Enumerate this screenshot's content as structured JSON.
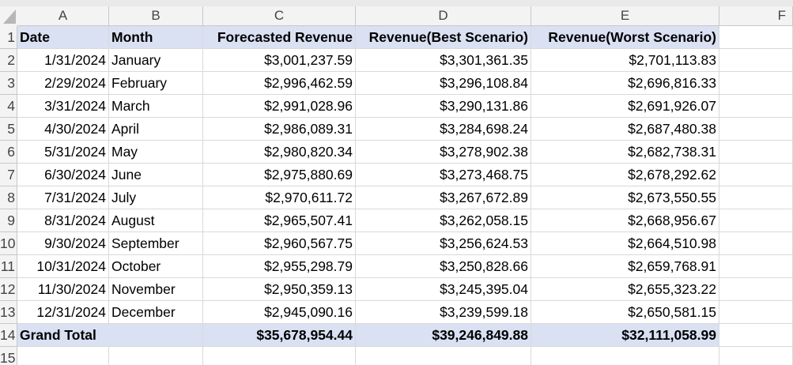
{
  "column_headers": [
    "A",
    "B",
    "C",
    "D",
    "E",
    "F"
  ],
  "row_numbers": [
    "1",
    "2",
    "3",
    "4",
    "5",
    "6",
    "7",
    "8",
    "9",
    "10",
    "11",
    "12",
    "13",
    "14",
    "15"
  ],
  "table": {
    "header": [
      "Date",
      "Month",
      "Forecasted Revenue",
      "Revenue(Best Scenario)",
      "Revenue(Worst Scenario)"
    ],
    "rows": [
      [
        "1/31/2024",
        "January",
        "$3,001,237.59",
        "$3,301,361.35",
        "$2,701,113.83"
      ],
      [
        "2/29/2024",
        "February",
        "$2,996,462.59",
        "$3,296,108.84",
        "$2,696,816.33"
      ],
      [
        "3/31/2024",
        "March",
        "$2,991,028.96",
        "$3,290,131.86",
        "$2,691,926.07"
      ],
      [
        "4/30/2024",
        "April",
        "$2,986,089.31",
        "$3,284,698.24",
        "$2,687,480.38"
      ],
      [
        "5/31/2024",
        "May",
        "$2,980,820.34",
        "$3,278,902.38",
        "$2,682,738.31"
      ],
      [
        "6/30/2024",
        "June",
        "$2,975,880.69",
        "$3,273,468.75",
        "$2,678,292.62"
      ],
      [
        "7/31/2024",
        "July",
        "$2,970,611.72",
        "$3,267,672.89",
        "$2,673,550.55"
      ],
      [
        "8/31/2024",
        "August",
        "$2,965,507.41",
        "$3,262,058.15",
        "$2,668,956.67"
      ],
      [
        "9/30/2024",
        "September",
        "$2,960,567.75",
        "$3,256,624.53",
        "$2,664,510.98"
      ],
      [
        "10/31/2024",
        "October",
        "$2,955,298.79",
        "$3,250,828.66",
        "$2,659,768.91"
      ],
      [
        "11/30/2024",
        "November",
        "$2,950,359.13",
        "$3,245,395.04",
        "$2,655,323.22"
      ],
      [
        "12/31/2024",
        "December",
        "$2,945,090.16",
        "$3,239,599.18",
        "$2,650,581.15"
      ]
    ],
    "total": {
      "label": "Grand Total",
      "values": [
        "$35,678,954.44",
        "$39,246,849.88",
        "$32,111,058.99"
      ]
    }
  }
}
